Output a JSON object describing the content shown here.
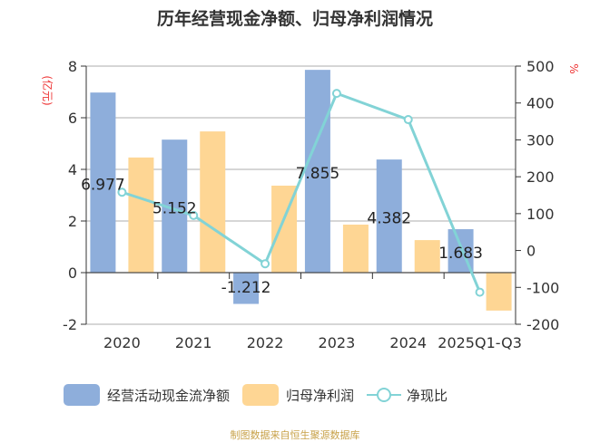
{
  "chart_data": {
    "type": "bar",
    "title": "历年经营现金净额、归母净利润情况",
    "categories": [
      "2020",
      "2021",
      "2022",
      "2023",
      "2024",
      "2025Q1-Q3"
    ],
    "y_left": {
      "label": "(亿元)",
      "range": [
        -2,
        8
      ],
      "ticks": [
        -2,
        0,
        2,
        4,
        6,
        8
      ]
    },
    "y_right": {
      "label": "%",
      "range": [
        -200,
        500
      ],
      "ticks": [
        -200,
        -100,
        0,
        100,
        200,
        300,
        400,
        500
      ]
    },
    "grid": true,
    "legend_position": "bottom",
    "series": [
      {
        "name": "经营活动现金流净额",
        "type": "bar",
        "axis": "left",
        "color": "#8eaedb",
        "values": [
          6.977,
          5.152,
          -1.212,
          7.855,
          4.382,
          1.683
        ],
        "labels": [
          "6.977",
          "5.152",
          "-1.212",
          "7.855",
          "4.382",
          "1.683"
        ]
      },
      {
        "name": "归母净利润",
        "type": "bar",
        "axis": "left",
        "color": "#fed694",
        "values": [
          4.46,
          5.47,
          3.37,
          1.86,
          1.26,
          -1.47
        ]
      },
      {
        "name": "净现比",
        "type": "line",
        "axis": "right",
        "color": "#82d3d6",
        "values": [
          158,
          95,
          -36,
          426,
          355,
          -113
        ]
      }
    ]
  },
  "source": "制图数据来自恒生聚源数据库"
}
